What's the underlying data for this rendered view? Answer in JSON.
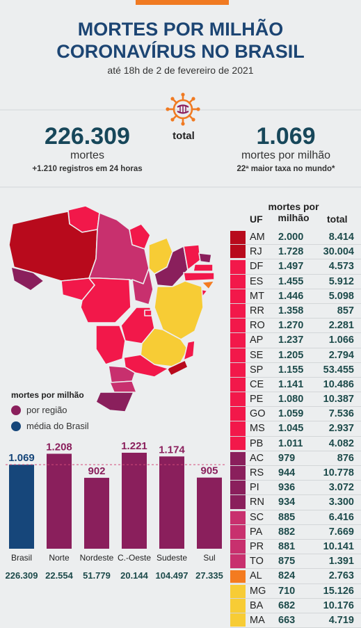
{
  "header": {
    "title_line1": "MORTES POR MILHÃO",
    "title_line2": "CORONAVÍRUS NO BRASIL",
    "subtitle": "até 18h de 2 de fevereiro de 2021",
    "accent_color": "#f07a22",
    "title_color": "#1c4573"
  },
  "summary": {
    "center_label": "total",
    "deaths_value": "226.309",
    "deaths_label": "mortes",
    "deaths_note": "+1.210 registros em 24 horas",
    "rate_value": "1.069",
    "rate_label": "mortes por milhão",
    "rate_note": "22ª maior taxa no mundo*"
  },
  "legend": {
    "title": "mortes por milhão",
    "items": [
      {
        "label": "por região",
        "color": "#8a1f5c"
      },
      {
        "label": "média do Brasil",
        "color": "#16467a"
      }
    ]
  },
  "table": {
    "header_mpm": "mortes por milhão",
    "header_uf": "UF",
    "header_total": "total",
    "groups": [
      {
        "color": "#b80a1c",
        "count": 2
      },
      {
        "color": "#f2184a",
        "count": 13
      },
      {
        "color": "#8a1f5c",
        "count": 4
      },
      {
        "color": "#c8306e",
        "count": 4
      },
      {
        "color": "#f47b20",
        "count": 1
      },
      {
        "color": "#f7cc35",
        "count": 3
      }
    ],
    "rows": [
      {
        "uf": "AM",
        "mpm": "2.000",
        "total": "8.414"
      },
      {
        "uf": "RJ",
        "mpm": "1.728",
        "total": "30.004"
      },
      {
        "uf": "DF",
        "mpm": "1.497",
        "total": "4.573"
      },
      {
        "uf": "ES",
        "mpm": "1.455",
        "total": "5.912"
      },
      {
        "uf": "MT",
        "mpm": "1.446",
        "total": "5.098"
      },
      {
        "uf": "RR",
        "mpm": "1.358",
        "total": "857"
      },
      {
        "uf": "RO",
        "mpm": "1.270",
        "total": "2.281"
      },
      {
        "uf": "AP",
        "mpm": "1.237",
        "total": "1.066"
      },
      {
        "uf": "SE",
        "mpm": "1.205",
        "total": "2.794"
      },
      {
        "uf": "SP",
        "mpm": "1.155",
        "total": "53.455"
      },
      {
        "uf": "CE",
        "mpm": "1.141",
        "total": "10.486"
      },
      {
        "uf": "PE",
        "mpm": "1.080",
        "total": "10.387"
      },
      {
        "uf": "GO",
        "mpm": "1.059",
        "total": "7.536"
      },
      {
        "uf": "MS",
        "mpm": "1.045",
        "total": "2.937"
      },
      {
        "uf": "PB",
        "mpm": "1.011",
        "total": "4.082"
      },
      {
        "uf": "AC",
        "mpm": "979",
        "total": "876"
      },
      {
        "uf": "RS",
        "mpm": "944",
        "total": "10.778"
      },
      {
        "uf": "PI",
        "mpm": "936",
        "total": "3.072"
      },
      {
        "uf": "RN",
        "mpm": "934",
        "total": "3.300"
      },
      {
        "uf": "SC",
        "mpm": "885",
        "total": "6.416"
      },
      {
        "uf": "PA",
        "mpm": "882",
        "total": "7.669"
      },
      {
        "uf": "PR",
        "mpm": "881",
        "total": "10.141"
      },
      {
        "uf": "TO",
        "mpm": "875",
        "total": "1.391"
      },
      {
        "uf": "AL",
        "mpm": "824",
        "total": "2.763"
      },
      {
        "uf": "MG",
        "mpm": "710",
        "total": "15.126"
      },
      {
        "uf": "BA",
        "mpm": "682",
        "total": "10.176"
      },
      {
        "uf": "MA",
        "mpm": "663",
        "total": "4.719"
      }
    ]
  },
  "chart_data": {
    "type": "bar",
    "categories": [
      "Brasil",
      "Norte",
      "Nordeste",
      "C.-Oeste",
      "Sudeste",
      "Sul"
    ],
    "values": [
      1069,
      1208,
      902,
      1221,
      1174,
      905
    ],
    "value_labels": [
      "1.069",
      "1.208",
      "902",
      "1.221",
      "1.174",
      "905"
    ],
    "totals": [
      "226.309",
      "22.554",
      "51.779",
      "20.144",
      "104.497",
      "27.335"
    ],
    "colors": [
      "#16467a",
      "#8a1f5c",
      "#8a1f5c",
      "#8a1f5c",
      "#8a1f5c",
      "#8a1f5c"
    ],
    "reference_line": 1069,
    "ylim": [
      0,
      1221
    ],
    "title": "",
    "xlabel": "",
    "ylabel": ""
  }
}
